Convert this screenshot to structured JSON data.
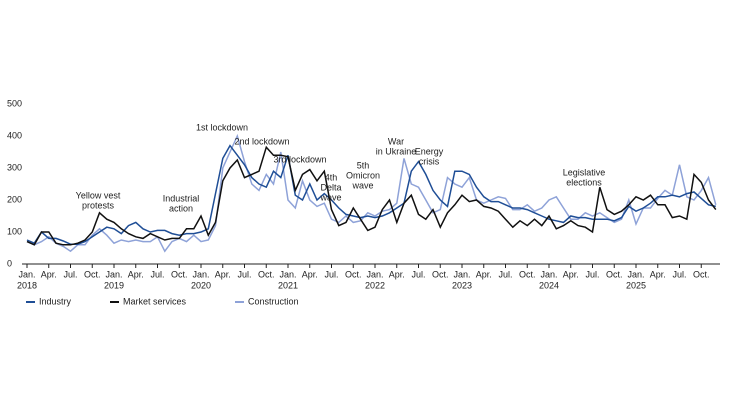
{
  "chart_data": {
    "type": "line",
    "categories": [
      "Jan.",
      null,
      null,
      "Apr.",
      null,
      null,
      "Jul.",
      null,
      null,
      "Oct.",
      null,
      null,
      "Jan.",
      null,
      null,
      "Apr.",
      null,
      null,
      "Jul.",
      null,
      null,
      "Oct.",
      null,
      null,
      "Jan.",
      null,
      null,
      "Apr.",
      null,
      null,
      "Jul.",
      null,
      null,
      "Oct.",
      null,
      null,
      "Jan.",
      null,
      null,
      "Apr.",
      null,
      null,
      "Jul.",
      null,
      null,
      "Oct.",
      null,
      null,
      "Jan.",
      null,
      null,
      "Apr.",
      null,
      null,
      "Jul.",
      null,
      null,
      "Oct.",
      null,
      null,
      "Jan.",
      null,
      null,
      "Apr.",
      null,
      null,
      "Jul.",
      null,
      null,
      "Oct.",
      null,
      null,
      "Jan.",
      null,
      null,
      "Apr.",
      null,
      null,
      "Jul.",
      null,
      null,
      "Oct.",
      null,
      null,
      "Jan.",
      null,
      null,
      "Apr.",
      null,
      null,
      "Jul.",
      null,
      null,
      "Oct.",
      null,
      null
    ],
    "years": [
      "2018",
      "2019",
      "2020",
      "2021",
      "2022",
      "2023",
      "2024",
      "2025"
    ],
    "ylim": [
      0,
      500
    ],
    "yticks": [
      0,
      100,
      200,
      300,
      400,
      500
    ],
    "grid": false,
    "legend": "bottom",
    "series": [
      {
        "name": "Industry",
        "color": "#1f4e96",
        "values": [
          75,
          65,
          100,
          80,
          80,
          72,
          62,
          62,
          70,
          85,
          100,
          115,
          110,
          95,
          120,
          130,
          110,
          100,
          105,
          105,
          95,
          90,
          95,
          95,
          100,
          110,
          220,
          330,
          370,
          340,
          310,
          270,
          250,
          240,
          290,
          270,
          340,
          215,
          200,
          250,
          200,
          220,
          200,
          175,
          155,
          150,
          145,
          150,
          145,
          150,
          160,
          175,
          190,
          290,
          320,
          280,
          230,
          200,
          180,
          290,
          290,
          280,
          240,
          210,
          195,
          195,
          185,
          175,
          175,
          170,
          160,
          150,
          140,
          135,
          130,
          150,
          145,
          145,
          140,
          140,
          140,
          135,
          145,
          180,
          165,
          175,
          190,
          210,
          210,
          215,
          210,
          220,
          225,
          205,
          185,
          180
        ]
      },
      {
        "name": "Market services",
        "color": "#111111",
        "values": [
          70,
          60,
          100,
          100,
          65,
          60,
          60,
          65,
          75,
          100,
          160,
          140,
          130,
          110,
          95,
          85,
          80,
          95,
          85,
          75,
          80,
          80,
          110,
          110,
          150,
          90,
          130,
          260,
          300,
          325,
          270,
          280,
          290,
          365,
          340,
          340,
          335,
          230,
          280,
          295,
          260,
          290,
          170,
          120,
          130,
          175,
          140,
          105,
          115,
          170,
          200,
          130,
          190,
          215,
          155,
          140,
          170,
          115,
          160,
          185,
          215,
          195,
          200,
          180,
          175,
          165,
          140,
          115,
          135,
          120,
          140,
          120,
          150,
          110,
          120,
          135,
          120,
          115,
          100,
          240,
          170,
          155,
          165,
          185,
          210,
          200,
          215,
          185,
          185,
          145,
          150,
          140,
          280,
          255,
          200,
          170
        ]
      },
      {
        "name": "Construction",
        "color": "#8ea2d8",
        "values": [
          70,
          60,
          70,
          85,
          65,
          55,
          40,
          60,
          60,
          90,
          110,
          90,
          65,
          75,
          70,
          75,
          70,
          70,
          85,
          40,
          70,
          80,
          70,
          90,
          70,
          75,
          120,
          300,
          350,
          400,
          320,
          250,
          230,
          280,
          250,
          350,
          200,
          175,
          260,
          200,
          180,
          190,
          140,
          130,
          150,
          130,
          135,
          160,
          150,
          165,
          170,
          190,
          330,
          250,
          240,
          200,
          160,
          170,
          270,
          250,
          240,
          270,
          200,
          190,
          200,
          210,
          205,
          170,
          170,
          185,
          165,
          175,
          200,
          210,
          175,
          140,
          140,
          160,
          150,
          160,
          145,
          130,
          140,
          200,
          125,
          175,
          175,
          205,
          230,
          215,
          310,
          210,
          200,
          230,
          270,
          185
        ]
      }
    ],
    "annotations": [
      {
        "lines": [
          "Yellow vest",
          "protests"
        ]
      },
      {
        "lines": [
          "Industrial",
          "action"
        ]
      },
      {
        "lines": [
          "1st lockdown"
        ]
      },
      {
        "lines": [
          "2nd lockdown"
        ]
      },
      {
        "lines": [
          "3rd lockdown"
        ]
      },
      {
        "lines": [
          "4th",
          "Delta",
          "wave"
        ]
      },
      {
        "lines": [
          "5th",
          "Omicron",
          "wave"
        ]
      },
      {
        "lines": [
          "War",
          "in Ukraine"
        ]
      },
      {
        "lines": [
          "Energy",
          "crisis"
        ]
      },
      {
        "lines": [
          "Legislative",
          "elections"
        ]
      }
    ]
  }
}
